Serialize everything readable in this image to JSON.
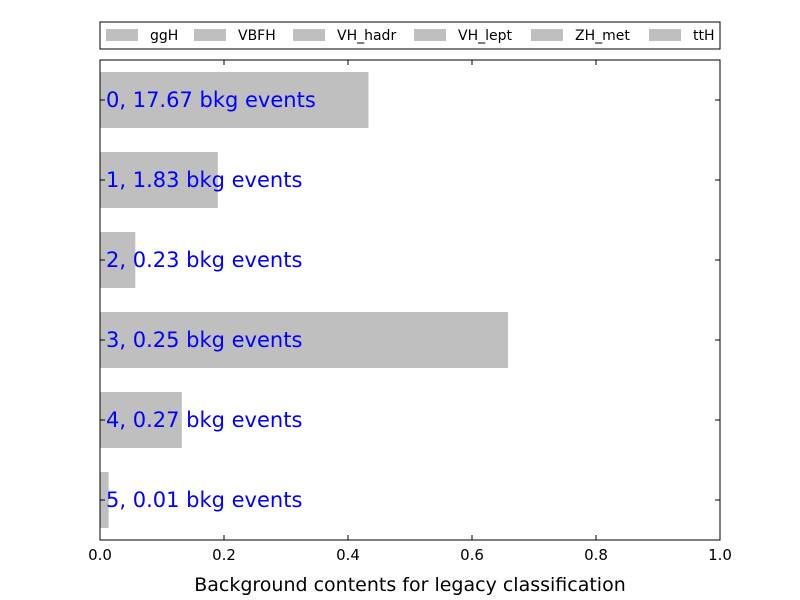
{
  "chart_data": {
    "type": "bar",
    "orientation": "horizontal",
    "xlabel": "Background contents for legacy classification",
    "xlim": [
      0,
      1
    ],
    "xticks": [
      "0.0",
      "0.2",
      "0.4",
      "0.6",
      "0.8",
      "1.0"
    ],
    "xtick_values": [
      0.0,
      0.2,
      0.4,
      0.6,
      0.8,
      1.0
    ],
    "grid": false,
    "legend": {
      "placement": "top",
      "entries": [
        "ggH",
        "VBFH",
        "VH_hadr",
        "VH_lept",
        "ZH_met",
        "ttH"
      ]
    },
    "categories": [
      "0",
      "1",
      "2",
      "3",
      "4",
      "5"
    ],
    "values": [
      0.433,
      0.19,
      0.057,
      0.658,
      0.132,
      0.014
    ],
    "bar_labels": [
      "0, 17.67 bkg events",
      "1, 1.83 bkg events",
      "2, 0.23 bkg events",
      "3, 0.25 bkg events",
      "4, 0.27 bkg events",
      "5, 0.01 bkg events"
    ],
    "colors": {
      "bar": "#bfbfbf",
      "label": "#0000ff",
      "axis": "#000000"
    }
  }
}
